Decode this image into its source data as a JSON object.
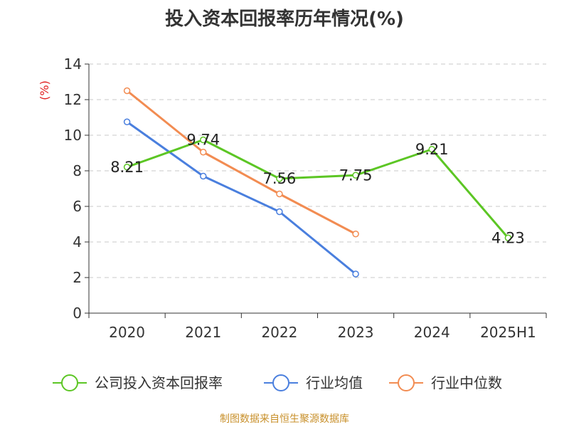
{
  "chart_data": {
    "type": "line",
    "title": "投入资本回报率历年情况(%)",
    "ylabel": "(%)",
    "categories": [
      "2020",
      "2021",
      "2022",
      "2023",
      "2024",
      "2025H1"
    ],
    "ylim": [
      0,
      14
    ],
    "yticks": [
      0,
      2,
      4,
      6,
      8,
      10,
      12,
      14
    ],
    "grid": true,
    "legend_position": "bottom",
    "series": [
      {
        "name": "公司投入资本回报率",
        "color": "#5cc624",
        "values": [
          8.21,
          9.74,
          7.56,
          7.75,
          9.21,
          4.23
        ],
        "labels": [
          "8.21",
          "9.74",
          "7.56",
          "7.75",
          "9.21",
          "4.23"
        ]
      },
      {
        "name": "行业均值",
        "color": "#4a7fde",
        "values": [
          10.75,
          7.7,
          5.7,
          2.2,
          null,
          null
        ]
      },
      {
        "name": "行业中位数",
        "color": "#f28c52",
        "values": [
          12.5,
          9.05,
          6.7,
          4.45,
          null,
          null
        ]
      }
    ]
  },
  "footer": {
    "source": "制图数据来自恒生聚源数据库"
  }
}
